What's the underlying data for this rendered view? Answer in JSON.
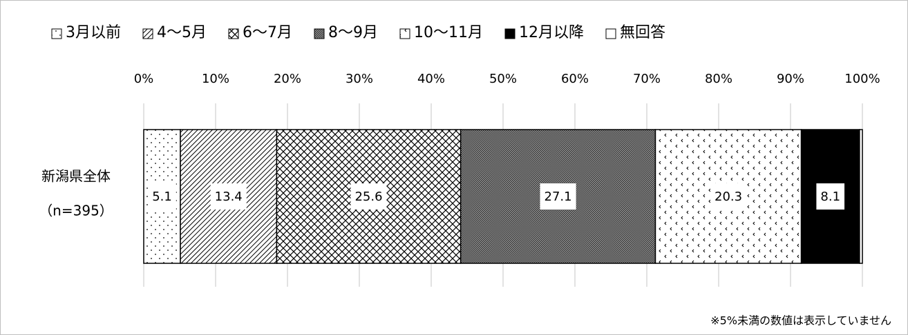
{
  "chart_data": {
    "type": "stacked-bar-horizontal",
    "categories": [
      [
        "新潟県全体",
        "（n=395）"
      ]
    ],
    "series": [
      {
        "name": "3月以前",
        "color": "#ffffff",
        "pattern": "dots",
        "values": [
          5.1
        ]
      },
      {
        "name": "4～5月",
        "color": "#ffffff",
        "pattern": "diagonal",
        "values": [
          13.4
        ]
      },
      {
        "name": "6～7月",
        "color": "#ffffff",
        "pattern": "lattice",
        "values": [
          25.6
        ]
      },
      {
        "name": "8～9月",
        "color": "#777777",
        "pattern": "dense",
        "values": [
          27.1
        ]
      },
      {
        "name": "10～11月",
        "color": "#ffffff",
        "pattern": "marks",
        "values": [
          20.3
        ]
      },
      {
        "name": "12月以降",
        "color": "#000000",
        "values": [
          8.1
        ]
      },
      {
        "name": "無回答",
        "color": "#ffffff",
        "values": [
          0.4
        ]
      }
    ],
    "label_min": 5,
    "xlim": [
      0,
      100
    ],
    "xticks": [
      {
        "value": 0,
        "label": "0%"
      },
      {
        "value": 10,
        "label": "10%"
      },
      {
        "value": 20,
        "label": "20%"
      },
      {
        "value": 30,
        "label": "30%"
      },
      {
        "value": 40,
        "label": "40%"
      },
      {
        "value": 50,
        "label": "50%"
      },
      {
        "value": 60,
        "label": "60%"
      },
      {
        "value": 70,
        "label": "70%"
      },
      {
        "value": 80,
        "label": "80%"
      },
      {
        "value": 90,
        "label": "90%"
      },
      {
        "value": 100,
        "label": "100%"
      }
    ],
    "grid": true,
    "legend": "top",
    "note": "※5%未満の数値は表示していません"
  }
}
